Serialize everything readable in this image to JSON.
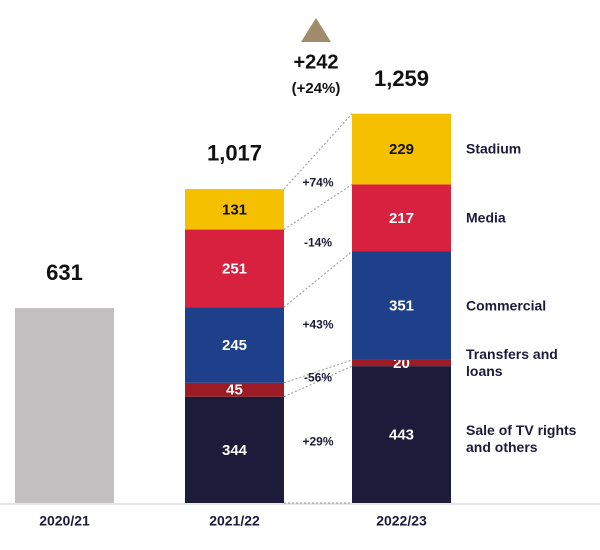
{
  "chart_data": {
    "type": "bar",
    "categories": [
      "2020/21",
      "2021/22",
      "2022/23"
    ],
    "totals": [
      631,
      1017,
      1259
    ],
    "totals_labels": [
      "631",
      "1,017",
      "1,259"
    ],
    "totals_color": "#c1bfc0",
    "change_annotation": {
      "absolute": "+242",
      "percent": "(+24%)",
      "color": "#a08c6a"
    },
    "series": [
      {
        "name": "Sale of TV rights and others",
        "color": "#1c1b3a",
        "values": [
          null,
          344,
          443
        ],
        "change": "+29%"
      },
      {
        "name": "Transfers and loans",
        "color": "#9b1c24",
        "values": [
          null,
          45,
          20
        ],
        "change": "-56%"
      },
      {
        "name": "Commercial",
        "color": "#1e3f8a",
        "values": [
          null,
          245,
          351
        ],
        "change": "+43%"
      },
      {
        "name": "Media",
        "color": "#d7213f",
        "values": [
          null,
          251,
          217
        ],
        "change": "-14%"
      },
      {
        "name": "Stadium",
        "color": "#f5c000",
        "values": [
          null,
          131,
          229
        ],
        "change": "+74%"
      }
    ]
  }
}
